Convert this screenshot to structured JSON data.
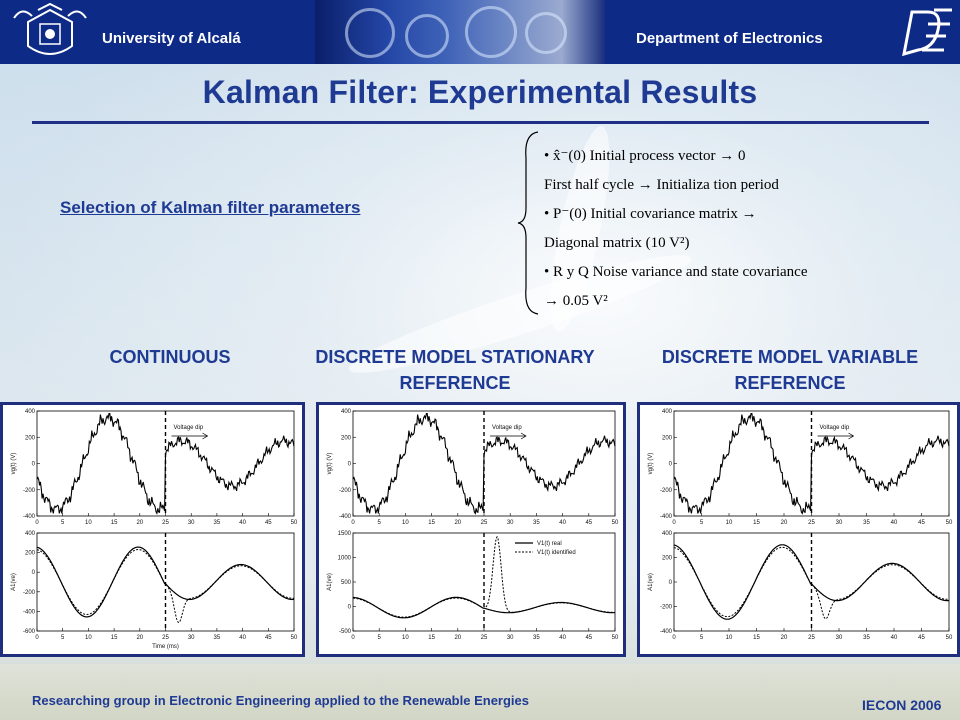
{
  "header": {
    "university": "University of Alcalá",
    "department": "Department of Electronics",
    "colors": {
      "bar": "#0d2a86",
      "title": "#1f3a93"
    }
  },
  "title": "Kalman Filter: Experimental Results",
  "selection_link": "Selection of Kalman filter parameters",
  "parameters": [
    "• x̂⁻(0)  Initial  process  vector  → 0",
    "First half cycle  → Initializa  tion period",
    "• P⁻(0) Initial  covariance  matrix  →",
    "Diagonal  matrix  (10 V²)",
    "• R y Q Noise variance  and state covariance",
    "→ 0.05  V²"
  ],
  "sections": [
    {
      "title": "CONTINUOUS"
    },
    {
      "title": "DISCRETE MODEL STATIONARY REFERENCE"
    },
    {
      "title": "DISCRETE MODEL VARIABLE REFERENCE"
    }
  ],
  "annotation": "Voltage dip",
  "legend": {
    "real": "V1(t) real",
    "identified": "V1(t) identified"
  },
  "axis": {
    "top_ylabel": "vg(t) (V)",
    "bottom_ylabel_a": "A1(ve)",
    "bottom_ylabel_b": "A1(ve)",
    "xlabel": "Time (ms)",
    "xticks": [
      "0",
      "5",
      "10",
      "15",
      "20",
      "25",
      "30",
      "35",
      "40",
      "45",
      "50"
    ]
  },
  "footer": {
    "left": "Researching group in Electronic Engineering applied to the Renewable Energies",
    "right": "IECON 2006"
  }
}
